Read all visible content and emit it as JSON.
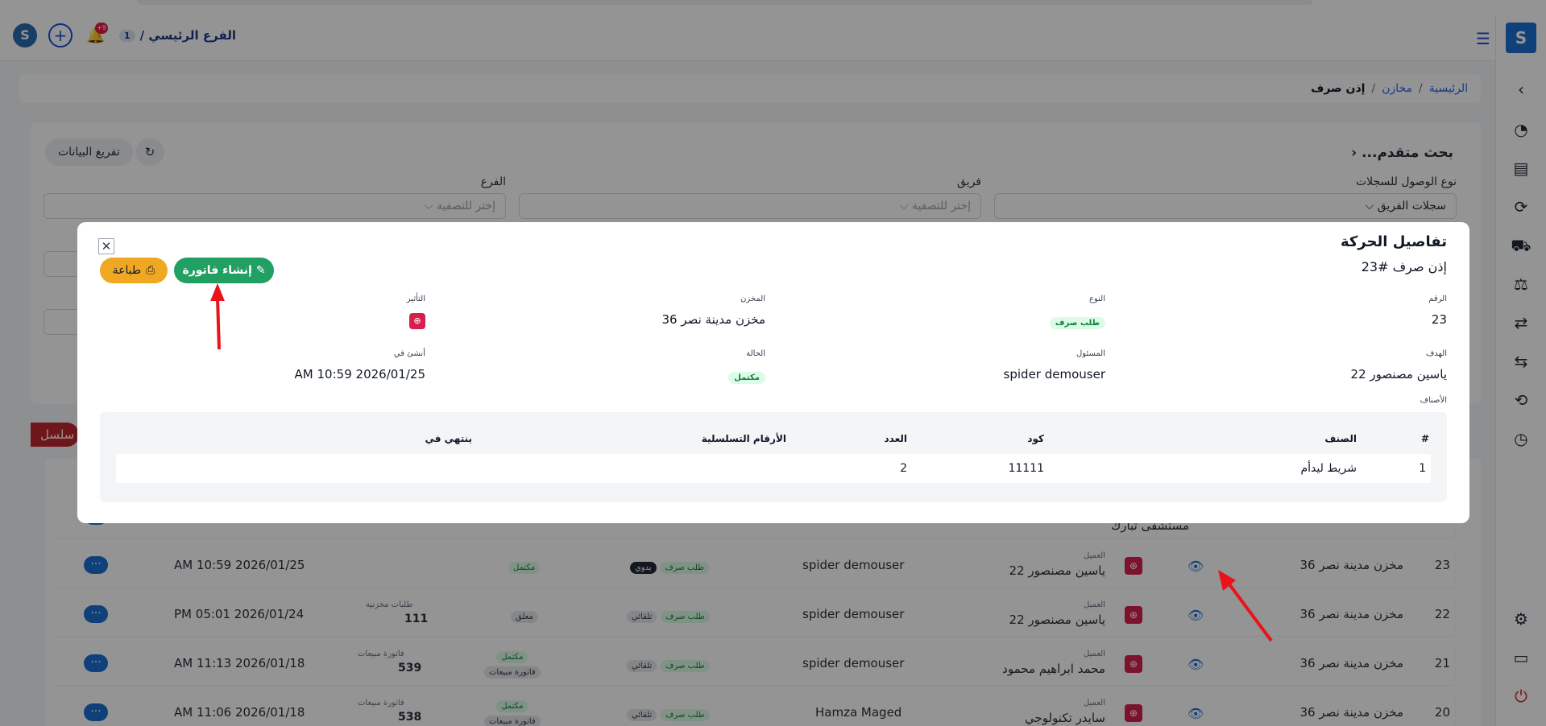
{
  "header": {
    "branch_label": "الفرع الرئيسي /",
    "branch_number": "1",
    "notifications_badge": "+9"
  },
  "breadcrumb": {
    "home": "الرئيسية",
    "section": "مخازن",
    "current": "إذن صرف",
    "separator": "/"
  },
  "filters": {
    "advanced_search": "بحث متقدم...",
    "clear_button": "تفريغ البيانات",
    "access_type_label": "نوع الوصول للسجلات",
    "access_type_value": "سجلات الفريق",
    "team_label": "فريق",
    "team_placeholder": "إختر للتصفية",
    "branch_label": "الفرع",
    "branch_placeholder": "إختر للتصفية",
    "serial_pill": "سلسل"
  },
  "rows": [
    {
      "num": "23",
      "warehouse": "مخزن مدينة نصر 36",
      "client_label": "العميل",
      "client": "ياسين مصنصور 22",
      "responsible": "spider demouser",
      "type_badge": "طلب صرف",
      "mode_badge": "يدوي",
      "status": "مكتمل",
      "ref_label": "",
      "ref_value": "",
      "date": "2026/01/25 10:59 AM"
    },
    {
      "num": "22",
      "warehouse": "مخزن مدينة نصر 36",
      "client_label": "العميل",
      "client": "ياسين مصنصور 22",
      "responsible": "spider demouser",
      "type_badge": "طلب صرف",
      "mode_badge": "تلقائي",
      "status": "معلق",
      "ref_label": "طلبات مخزنية",
      "ref_value": "111",
      "date": "2026/01/24 05:01 PM"
    },
    {
      "num": "21",
      "warehouse": "مخزن مدينة نصر 36",
      "client_label": "العميل",
      "client": "محمد ابراهيم محمود",
      "responsible": "spider demouser",
      "type_badge": "طلب صرف",
      "mode_badge": "تلقائي",
      "status": "مكتمل",
      "status2": "فاتورة مبيعات",
      "ref_label": "فاتورة مبيعات",
      "ref_value": "539",
      "date": "2026/01/18 11:13 AM"
    },
    {
      "num": "20",
      "warehouse": "مخزن مدينة نصر 36",
      "client_label": "العميل",
      "client": "سايدر تكنولوجي",
      "responsible": "Hamza Maged",
      "type_badge": "طلب صرف",
      "mode_badge": "تلقائي",
      "status": "مكتمل",
      "status2": "فاتورة مبيعات",
      "ref_label": "فاتورة مبيعات",
      "ref_value": "538",
      "date": "2026/01/18 11:06 AM"
    }
  ],
  "partial_row": {
    "client": "مستشفى تبارك"
  },
  "modal": {
    "title": "تفاصيل الحركة",
    "subtitle": "إذن صرف #23",
    "invoice_button": "إنشاء فاتورة",
    "print_button": "طباعة",
    "fields": {
      "number_label": "الرقم",
      "number_value": "23",
      "type_label": "النوع",
      "type_value": "طلب صرف",
      "warehouse_label": "المخزن",
      "warehouse_value": "مخزن مدينة نصر 36",
      "effect_label": "التأثير",
      "target_label": "الهدف",
      "target_value": "ياسين مصنصور 22",
      "responsible_label": "المسئول",
      "responsible_value": "spider demouser",
      "status_label": "الحالة",
      "status_value": "مكتمل",
      "created_label": "أنشئ في",
      "created_value": "2026/01/25 10:59 AM",
      "items_label": "الأصناف"
    },
    "items_table": {
      "headers": {
        "hash": "#",
        "item": "الصنف",
        "code": "كود",
        "qty": "العدد",
        "serials": "الأرقام التسلسلية",
        "expires": "ينتهي في"
      },
      "rows": [
        {
          "hash": "1",
          "item": "شريط ليدأم",
          "code": "11111",
          "qty": "2",
          "serials": "",
          "expires": ""
        }
      ]
    }
  }
}
